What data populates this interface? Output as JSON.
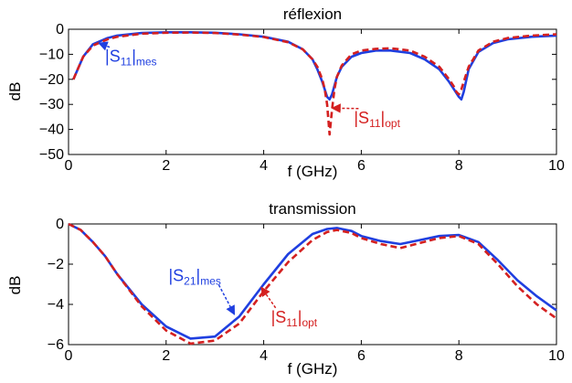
{
  "chart_data": [
    {
      "type": "line",
      "title": "réflexion",
      "xlabel": "f (GHz)",
      "ylabel": "dB",
      "xlim": [
        0,
        10
      ],
      "ylim": [
        -50,
        0
      ],
      "xticks": [
        0,
        2,
        4,
        6,
        8,
        10
      ],
      "yticks": [
        0,
        -10,
        -20,
        -30,
        -40,
        -50
      ],
      "grid": false,
      "series": [
        {
          "name": "|S11|mes",
          "color": "#1f3fe0",
          "style": "solid",
          "x": [
            0.1,
            0.3,
            0.5,
            0.8,
            1.0,
            1.5,
            2.0,
            2.5,
            3.0,
            3.5,
            4.0,
            4.5,
            4.8,
            5.0,
            5.1,
            5.2,
            5.3,
            5.35,
            5.4,
            5.5,
            5.6,
            5.8,
            6.0,
            6.3,
            6.6,
            7.0,
            7.3,
            7.6,
            7.8,
            7.9,
            8.0,
            8.05,
            8.1,
            8.2,
            8.4,
            8.7,
            9.0,
            9.5,
            10.0
          ],
          "y": [
            -20,
            -11,
            -6,
            -3.5,
            -2.5,
            -1.5,
            -1.2,
            -1.2,
            -1.4,
            -2,
            -3,
            -5,
            -8,
            -12,
            -16,
            -21,
            -27,
            -28,
            -26,
            -19,
            -15,
            -11,
            -9.5,
            -8.5,
            -8.5,
            -9.5,
            -12,
            -16,
            -21,
            -24,
            -27,
            -28,
            -25,
            -16,
            -9,
            -5.5,
            -4,
            -3,
            -2.5
          ]
        },
        {
          "name": "|S11|opt",
          "color": "#d42020",
          "style": "dashed",
          "x": [
            0.1,
            0.3,
            0.5,
            0.8,
            1.0,
            1.5,
            2.0,
            2.5,
            3.0,
            3.5,
            4.0,
            4.5,
            4.8,
            5.0,
            5.1,
            5.2,
            5.25,
            5.3,
            5.35,
            5.4,
            5.45,
            5.5,
            5.6,
            5.8,
            6.0,
            6.3,
            6.6,
            7.0,
            7.3,
            7.6,
            7.8,
            7.9,
            7.95,
            8.0,
            8.05,
            8.1,
            8.2,
            8.4,
            8.7,
            9.0,
            9.5,
            10.0
          ],
          "y": [
            -20,
            -11,
            -6.5,
            -4,
            -3,
            -1.8,
            -1.4,
            -1.3,
            -1.5,
            -2.1,
            -3.1,
            -5.2,
            -8,
            -12,
            -15,
            -20,
            -24,
            -30,
            -42,
            -32,
            -24,
            -19,
            -14.5,
            -10,
            -8.5,
            -7.8,
            -7.6,
            -8.5,
            -11,
            -15,
            -20,
            -23,
            -25,
            -26,
            -24,
            -21,
            -15,
            -8.5,
            -5,
            -3.5,
            -2.5,
            -2
          ]
        }
      ],
      "annotations": [
        {
          "main": "|S",
          "sub": "11",
          "close": "|",
          "sub2": "mes",
          "color": "#1f3fe0",
          "x": 0.75,
          "y": -13,
          "arrow_to": [
            0.62,
            -5.5
          ]
        },
        {
          "main": "|S",
          "sub": "11",
          "close": "|",
          "sub2": "opt",
          "color": "#d42020",
          "x": 5.85,
          "y": -37.5,
          "arrow_to": [
            5.4,
            -31.5
          ]
        }
      ]
    },
    {
      "type": "line",
      "title": "transmission",
      "xlabel": "f (GHz)",
      "ylabel": "dB",
      "xlim": [
        0,
        10
      ],
      "ylim": [
        -6,
        0
      ],
      "xticks": [
        0,
        2,
        4,
        6,
        8,
        10
      ],
      "yticks": [
        0,
        -2,
        -4,
        -6
      ],
      "grid": false,
      "series": [
        {
          "name": "|S21|mes",
          "color": "#1f3fe0",
          "style": "solid",
          "x": [
            0,
            0.25,
            0.5,
            0.75,
            1.0,
            1.5,
            2.0,
            2.5,
            3.0,
            3.5,
            4.0,
            4.5,
            5.0,
            5.3,
            5.5,
            5.8,
            6.0,
            6.4,
            6.8,
            7.2,
            7.6,
            8.0,
            8.4,
            8.8,
            9.2,
            9.6,
            10.0
          ],
          "y": [
            0,
            -0.3,
            -0.9,
            -1.6,
            -2.5,
            -4.0,
            -5.1,
            -5.7,
            -5.6,
            -4.6,
            -3.0,
            -1.5,
            -0.5,
            -0.25,
            -0.2,
            -0.35,
            -0.6,
            -0.85,
            -1.0,
            -0.8,
            -0.6,
            -0.55,
            -0.9,
            -1.8,
            -2.8,
            -3.6,
            -4.3
          ]
        },
        {
          "name": "|S11|opt",
          "color": "#d42020",
          "style": "dashed",
          "x": [
            0,
            0.25,
            0.5,
            0.75,
            1.0,
            1.5,
            2.0,
            2.5,
            3.0,
            3.5,
            4.0,
            4.5,
            5.0,
            5.3,
            5.5,
            5.8,
            6.0,
            6.4,
            6.8,
            7.2,
            7.6,
            8.0,
            8.4,
            8.8,
            9.2,
            9.6,
            10.0
          ],
          "y": [
            0,
            -0.3,
            -0.9,
            -1.6,
            -2.5,
            -4.1,
            -5.3,
            -5.95,
            -5.8,
            -4.95,
            -3.35,
            -1.9,
            -0.8,
            -0.4,
            -0.3,
            -0.45,
            -0.7,
            -1.0,
            -1.2,
            -0.95,
            -0.7,
            -0.6,
            -1.0,
            -2.0,
            -3.1,
            -4.0,
            -4.7
          ]
        }
      ],
      "annotations": [
        {
          "main": "|S",
          "sub": "21",
          "close": "|",
          "sub2": "mes",
          "color": "#1f3fe0",
          "x": 2.05,
          "y": -2.85,
          "arrow_to": [
            3.4,
            -4.5
          ]
        },
        {
          "main": "|S",
          "sub": "11",
          "close": "|",
          "sub2": "opt",
          "color": "#d42020",
          "x": 4.15,
          "y": -4.9,
          "arrow_to": [
            3.95,
            -3.15
          ]
        }
      ]
    }
  ]
}
